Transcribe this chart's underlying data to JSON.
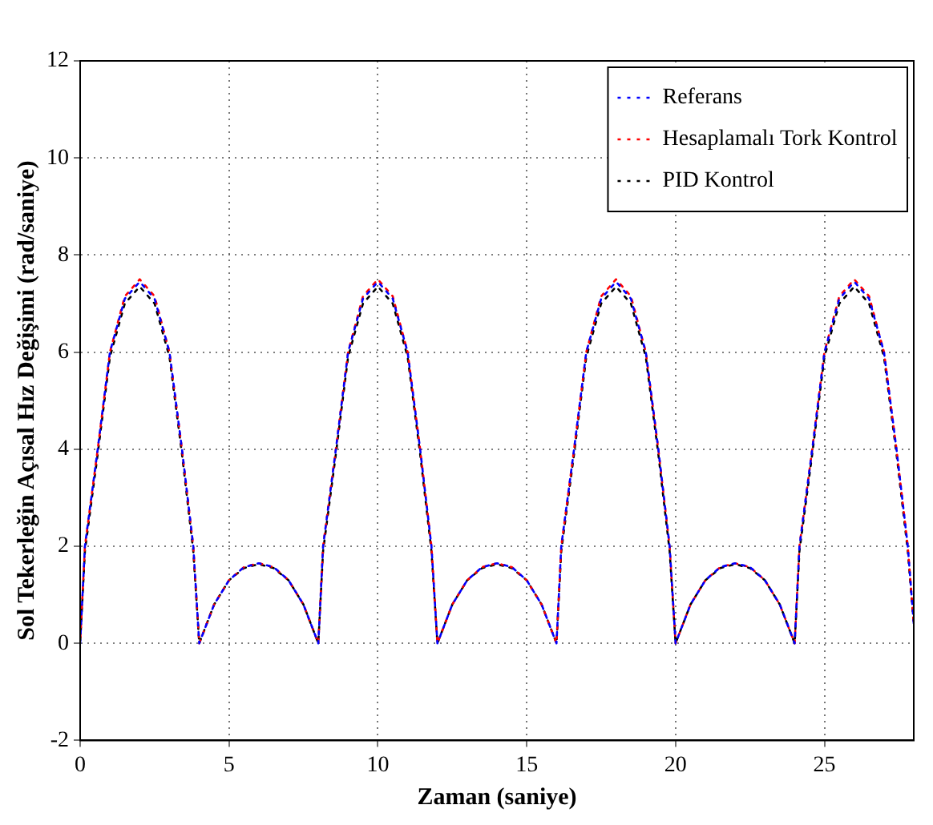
{
  "chart_data": {
    "type": "line",
    "xlabel": "Zaman (saniye)",
    "ylabel": "Sol Tekerleğin Açısal Hız Değişimi (rad/saniye)",
    "x": [
      0,
      0.16,
      0.59,
      1,
      1.5,
      2,
      2.5,
      3,
      3.42,
      3.8,
      4,
      4.5,
      5,
      5.5,
      6,
      6.5,
      7,
      7.5,
      8,
      8.16,
      8.59,
      9,
      9.5,
      10,
      10.5,
      11,
      11.42,
      11.8,
      12,
      12.5,
      13,
      13.5,
      14,
      14.5,
      15,
      15.5,
      16,
      16.16,
      16.59,
      17,
      17.5,
      18,
      18.5,
      19,
      19.42,
      19.8,
      20,
      20.5,
      21,
      21.5,
      22,
      22.5,
      23,
      23.5,
      24,
      24.16,
      24.59,
      25,
      25.5,
      26,
      26.5,
      27,
      27.42,
      27.8,
      28
    ],
    "series": [
      {
        "name": "Referans",
        "color": "#0000ff",
        "values": [
          0,
          2,
          4,
          6,
          7.1,
          7.45,
          7.1,
          6,
          4,
          2,
          0,
          0.8,
          1.3,
          1.57,
          1.65,
          1.57,
          1.3,
          0.8,
          0,
          2,
          4,
          6,
          7.1,
          7.45,
          7.1,
          6,
          4,
          2,
          0,
          0.8,
          1.3,
          1.57,
          1.65,
          1.57,
          1.3,
          0.8,
          0,
          2,
          4,
          6,
          7.1,
          7.45,
          7.1,
          6,
          4,
          2,
          0,
          0.8,
          1.3,
          1.57,
          1.65,
          1.57,
          1.3,
          0.8,
          0,
          2,
          4,
          6,
          7.1,
          7.45,
          7.1,
          6,
          4,
          2,
          0.4
        ]
      },
      {
        "name": "Hesaplamalı Tork Kontrol",
        "color": "#ff0000",
        "values": [
          0,
          2,
          4,
          6,
          7.15,
          7.5,
          7.15,
          6,
          4,
          2,
          0,
          0.8,
          1.3,
          1.57,
          1.65,
          1.57,
          1.3,
          0.8,
          0,
          2,
          4,
          6,
          7.15,
          7.5,
          7.15,
          6,
          4,
          2,
          0,
          0.8,
          1.3,
          1.57,
          1.65,
          1.57,
          1.3,
          0.8,
          0,
          2,
          4,
          6,
          7.15,
          7.5,
          7.15,
          6,
          4,
          2,
          0,
          0.8,
          1.3,
          1.57,
          1.65,
          1.57,
          1.3,
          0.8,
          0,
          2,
          4,
          6,
          7.15,
          7.5,
          7.15,
          6,
          4,
          2,
          0.4
        ]
      },
      {
        "name": "PID Kontrol",
        "color": "#000000",
        "values": [
          0,
          1.9,
          3.9,
          5.9,
          7,
          7.35,
          7,
          5.9,
          3.9,
          1.9,
          0,
          0.8,
          1.3,
          1.55,
          1.63,
          1.55,
          1.3,
          0.8,
          0,
          1.9,
          3.9,
          5.9,
          7,
          7.35,
          7,
          5.9,
          3.9,
          1.9,
          0,
          0.8,
          1.3,
          1.55,
          1.63,
          1.55,
          1.3,
          0.8,
          0,
          1.9,
          3.9,
          5.9,
          7,
          7.35,
          7,
          5.9,
          3.9,
          1.9,
          0,
          0.8,
          1.3,
          1.55,
          1.63,
          1.55,
          1.3,
          0.8,
          0,
          1.9,
          3.9,
          5.9,
          7,
          7.35,
          7,
          5.9,
          3.9,
          1.9,
          0.4
        ]
      }
    ],
    "xlim": [
      0,
      28
    ],
    "xticks": [
      0,
      5,
      10,
      15,
      20,
      25
    ],
    "ylim": [
      -2,
      12
    ],
    "yticks": [
      -2,
      0,
      2,
      4,
      6,
      8,
      10,
      12
    ],
    "grid": true,
    "legend": "top right",
    "marker": "none",
    "line_style": "dashed"
  }
}
